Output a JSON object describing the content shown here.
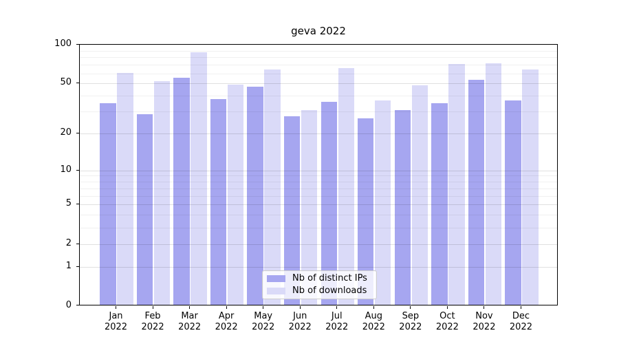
{
  "title": "geva 2022",
  "colors": {
    "ips": "#a6a6f0",
    "downloads": "#dadaf8",
    "grid_major": "rgba(0,0,0,0.12)",
    "grid_minor": "rgba(0,0,0,0.06)",
    "spine": "#000000",
    "legend_border": "#cccccc",
    "legend_bg": "rgba(255,255,255,0.8)"
  },
  "legend": {
    "items": [
      {
        "label": "Nb of distinct IPs",
        "color_key": "ips"
      },
      {
        "label": "Nb of downloads",
        "color_key": "downloads"
      }
    ]
  },
  "x_axis": {
    "months": [
      "Jan",
      "Feb",
      "Mar",
      "Apr",
      "May",
      "Jun",
      "Jul",
      "Aug",
      "Sep",
      "Oct",
      "Nov",
      "Dec"
    ],
    "year": "2022"
  },
  "y_axis": {
    "tick_labels": [
      "0",
      "1",
      "2",
      "5",
      "10",
      "20",
      "50",
      "100"
    ]
  },
  "chart_data": {
    "type": "bar",
    "title": "geva 2022",
    "categories": [
      "Jan 2022",
      "Feb 2022",
      "Mar 2022",
      "Apr 2022",
      "May 2022",
      "Jun 2022",
      "Jul 2022",
      "Aug 2022",
      "Sep 2022",
      "Oct 2022",
      "Nov 2022",
      "Dec 2022"
    ],
    "series": [
      {
        "name": "Nb of distinct IPs",
        "color": "#a6a6f0",
        "values": [
          34,
          28,
          54,
          37,
          46,
          27,
          35,
          26,
          30,
          34,
          52,
          36
        ]
      },
      {
        "name": "Nb of downloads",
        "color": "#dadaf8",
        "values": [
          59,
          51,
          85,
          48,
          63,
          30,
          64,
          36,
          47,
          69,
          70,
          63
        ]
      }
    ],
    "xlabel": "",
    "ylabel": "",
    "yscale": "log1p",
    "ylim": [
      0,
      100
    ],
    "y_major_ticks": [
      0,
      1,
      2,
      5,
      10,
      20,
      50,
      100
    ],
    "y_minor_gridlines": [
      3,
      4,
      6,
      7,
      8,
      9,
      30,
      40,
      60,
      70,
      80,
      90
    ],
    "grid": true,
    "legend_position": "lower center"
  }
}
